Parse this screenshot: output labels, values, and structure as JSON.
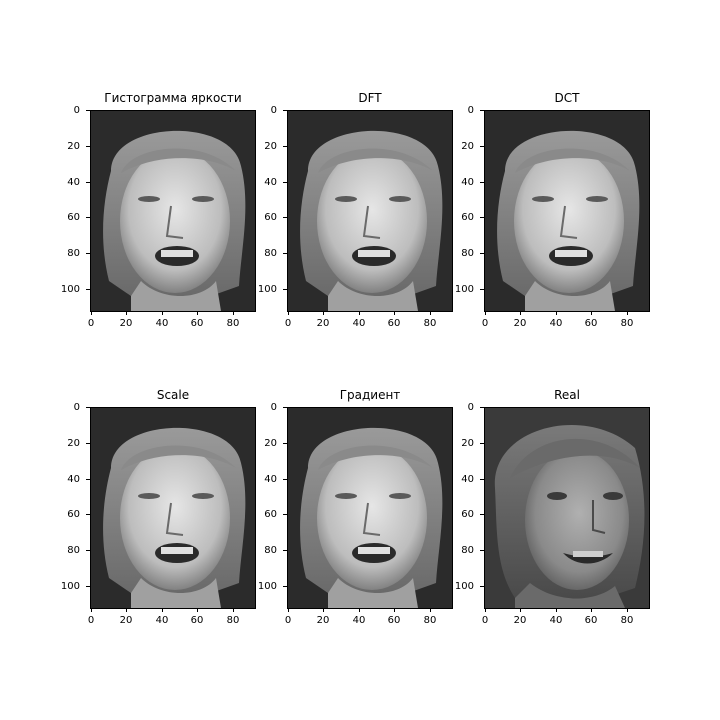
{
  "figure": {
    "panels": [
      {
        "title": "Гистограмма яркости",
        "variant": "processed"
      },
      {
        "title": "DFT",
        "variant": "processed"
      },
      {
        "title": "DCT",
        "variant": "processed"
      },
      {
        "title": "Scale",
        "variant": "processed"
      },
      {
        "title": "Градиент",
        "variant": "processed"
      },
      {
        "title": "Real",
        "variant": "real"
      }
    ],
    "y_ticks": [
      "0",
      "20",
      "40",
      "60",
      "80",
      "100"
    ],
    "x_ticks": [
      "0",
      "20",
      "40",
      "60",
      "80"
    ],
    "image_extent": {
      "width": 92,
      "height": 112
    }
  }
}
